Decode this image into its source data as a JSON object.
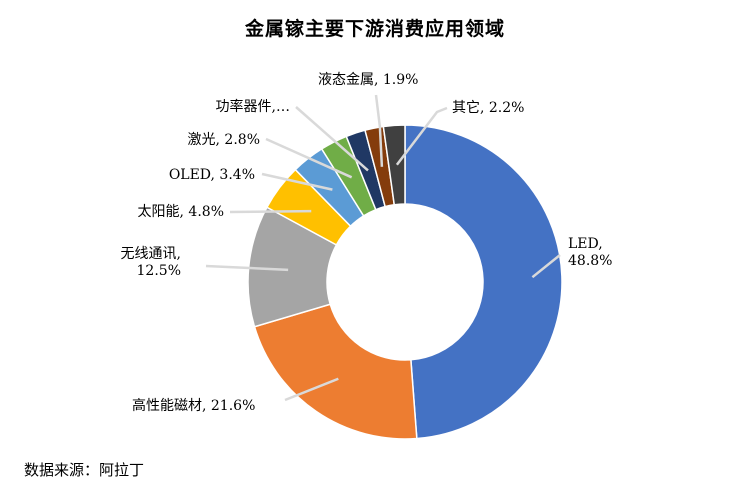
{
  "chart_data": {
    "type": "pie",
    "title": "金属镓主要下游消费应用领域",
    "donut": true,
    "categories": [
      "LED",
      "高性能磁材",
      "无线通讯",
      "太阳能",
      "OLED",
      "激光",
      "功率器件",
      "液态金属",
      "其它"
    ],
    "values": [
      48.8,
      21.6,
      12.5,
      4.8,
      3.4,
      2.8,
      2.0,
      1.9,
      2.2
    ],
    "labels": [
      [
        "LED,",
        "48.8%"
      ],
      [
        "高性能磁材, 21.6%"
      ],
      [
        "无线通讯,",
        "12.5%"
      ],
      [
        "太阳能, 4.8%"
      ],
      [
        "OLED, 3.4%"
      ],
      [
        "激光, 2.8%"
      ],
      [
        "功率器件,…"
      ],
      [
        "液态金属, 1.9%"
      ],
      [
        "其它, 2.2%"
      ]
    ],
    "colors": [
      "#4472C4",
      "#ED7D31",
      "#A5A5A5",
      "#FFC000",
      "#5B9BD5",
      "#70AD47",
      "#203864",
      "#843C0C",
      "#404040"
    ]
  },
  "source_note": "数据来源：阿拉丁"
}
